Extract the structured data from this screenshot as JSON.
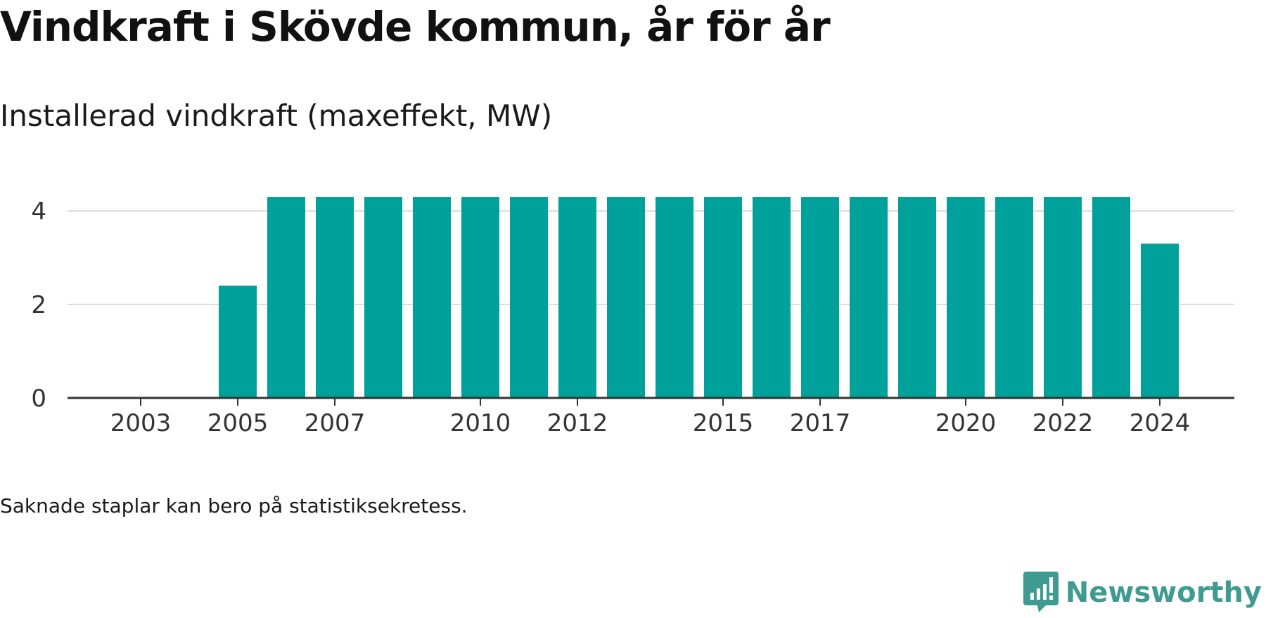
{
  "title": "Vindkraft i Skövde kommun, år för år",
  "subtitle": "Installerad vindkraft (maxeffekt, MW)",
  "footnote": "Saknade staplar kan bero på statistiksekretess.",
  "brand": {
    "name": "Newsworthy",
    "icon": "newsworthy-logo-icon",
    "color": "#3f9a92"
  },
  "chart_data": {
    "type": "bar",
    "xlabel": "",
    "ylabel": "",
    "categories": [
      "2003",
      "2004",
      "2005",
      "2006",
      "2007",
      "2008",
      "2009",
      "2010",
      "2011",
      "2012",
      "2013",
      "2014",
      "2015",
      "2016",
      "2017",
      "2018",
      "2019",
      "2020",
      "2021",
      "2022",
      "2023",
      "2024"
    ],
    "values": [
      null,
      null,
      2.4,
      4.3,
      4.3,
      4.3,
      4.3,
      4.3,
      4.3,
      4.3,
      4.3,
      4.3,
      4.3,
      4.3,
      4.3,
      4.3,
      4.3,
      4.3,
      4.3,
      4.3,
      4.3,
      3.3
    ],
    "x_tick_labels": [
      "2003",
      "2005",
      "2007",
      "2010",
      "2012",
      "2015",
      "2017",
      "2020",
      "2022",
      "2024"
    ],
    "y_ticks": [
      0,
      2,
      4
    ],
    "ylim": [
      0,
      4.5
    ],
    "grid": true,
    "bar_color": "#00a19a",
    "grid_color": "#dddddd",
    "axis_color": "#333333"
  }
}
